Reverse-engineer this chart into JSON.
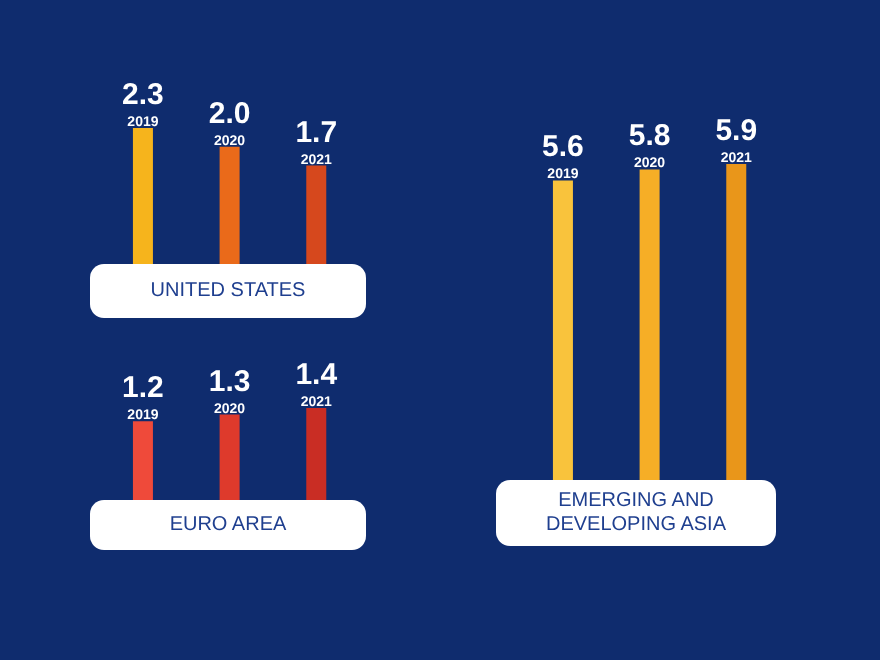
{
  "chart_data": [
    {
      "type": "bar",
      "title": "UNITED STATES",
      "categories": [
        "2019",
        "2020",
        "2021"
      ],
      "values": [
        2.3,
        2.0,
        1.7
      ],
      "value_labels": [
        "2.3",
        "2.0",
        "1.7"
      ],
      "colors": [
        "#f6b41c",
        "#ea6a1a",
        "#d6481d"
      ]
    },
    {
      "type": "bar",
      "title": "EURO AREA",
      "categories": [
        "2019",
        "2020",
        "2021"
      ],
      "values": [
        1.2,
        1.3,
        1.4
      ],
      "colors": [
        "#ef4a3a",
        "#de3a2c",
        "#c92d24"
      ],
      "data_labels": true
    },
    {
      "type": "bar",
      "title": "EMERGING AND DEVELOPING ASIA",
      "categories": [
        "2019",
        "2020",
        "2021"
      ],
      "values": [
        5.6,
        5.8,
        5.9
      ],
      "colors": [
        "#f9c33c",
        "#f6ae26",
        "#e9961a"
      ],
      "data_labels": true
    }
  ]
}
